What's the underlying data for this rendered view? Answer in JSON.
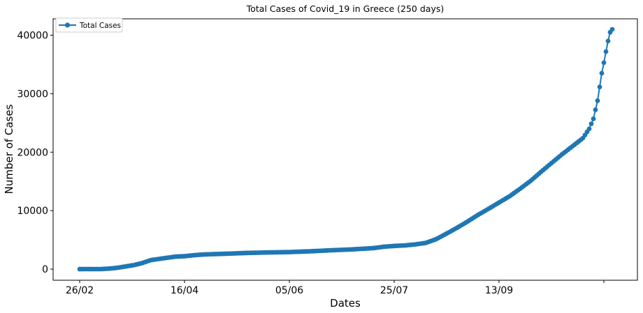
{
  "chart_data": {
    "type": "line",
    "title": "Total Cases of Covid_19 in Greece (250 days)",
    "xlabel": "Dates",
    "ylabel": "Number of Cases",
    "x_tick_labels": [
      "26/02",
      "16/04",
      "05/06",
      "25/07",
      "13/09",
      ""
    ],
    "y_ticks": [
      0,
      10000,
      20000,
      30000,
      40000
    ],
    "ylim": [
      -1900,
      42800
    ],
    "grid": false,
    "legend": {
      "placement": "upper left",
      "entries": [
        "Total Cases"
      ]
    },
    "colors": {
      "series": "#1f77b4"
    },
    "series": [
      {
        "name": "Total Cases",
        "marker": "circle",
        "anchors": [
          [
            0,
            1
          ],
          [
            3,
            7
          ],
          [
            10,
            10
          ],
          [
            14,
            89
          ],
          [
            18,
            228
          ],
          [
            22,
            464
          ],
          [
            26,
            695
          ],
          [
            30,
            1061
          ],
          [
            34,
            1544
          ],
          [
            38,
            1755
          ],
          [
            42,
            1955
          ],
          [
            46,
            2145
          ],
          [
            50,
            2207
          ],
          [
            55,
            2401
          ],
          [
            60,
            2517
          ],
          [
            70,
            2634
          ],
          [
            80,
            2770
          ],
          [
            90,
            2852
          ],
          [
            100,
            2915
          ],
          [
            110,
            3049
          ],
          [
            120,
            3227
          ],
          [
            130,
            3376
          ],
          [
            140,
            3589
          ],
          [
            145,
            3826
          ],
          [
            150,
            3964
          ],
          [
            155,
            4048
          ],
          [
            160,
            4227
          ],
          [
            165,
            4477
          ],
          [
            170,
            5123
          ],
          [
            175,
            6077
          ],
          [
            180,
            7075
          ],
          [
            185,
            8140
          ],
          [
            190,
            9280
          ],
          [
            195,
            10317
          ],
          [
            200,
            11386
          ],
          [
            205,
            12452
          ],
          [
            210,
            13730
          ],
          [
            215,
            15070
          ],
          [
            220,
            16627
          ],
          [
            225,
            18123
          ],
          [
            230,
            19613
          ],
          [
            235,
            21000
          ],
          [
            240,
            22400
          ],
          [
            243,
            24000
          ],
          [
            245,
            25700
          ],
          [
            247,
            28800
          ],
          [
            249,
            33500
          ],
          [
            250,
            35300
          ],
          [
            251,
            37200
          ],
          [
            252,
            39000
          ],
          [
            253,
            40500
          ],
          [
            254,
            41000
          ]
        ]
      }
    ]
  }
}
